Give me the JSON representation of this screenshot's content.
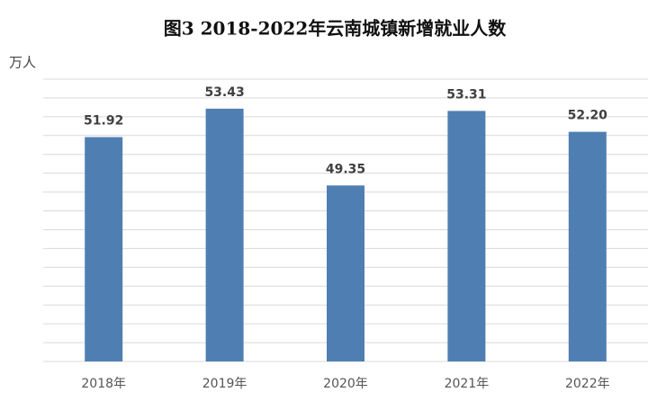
{
  "chart_data": {
    "type": "bar",
    "title": "图3 2018-2022年云南城镇新增就业人数",
    "y_unit": "万人",
    "categories": [
      "2018年",
      "2019年",
      "2020年",
      "2021年",
      "2022年"
    ],
    "values": [
      51.92,
      53.43,
      49.35,
      53.31,
      52.2
    ],
    "value_labels": [
      "51.92",
      "53.43",
      "49.35",
      "53.31",
      "52.20"
    ],
    "color": "#4f7fb2",
    "ylim": [
      40,
      55
    ],
    "yticks": [
      40,
      41,
      42,
      43,
      44,
      45,
      46,
      47,
      48,
      49,
      50,
      51,
      52,
      53,
      54,
      55
    ],
    "ytick_labels_shown": false,
    "grid": true
  }
}
